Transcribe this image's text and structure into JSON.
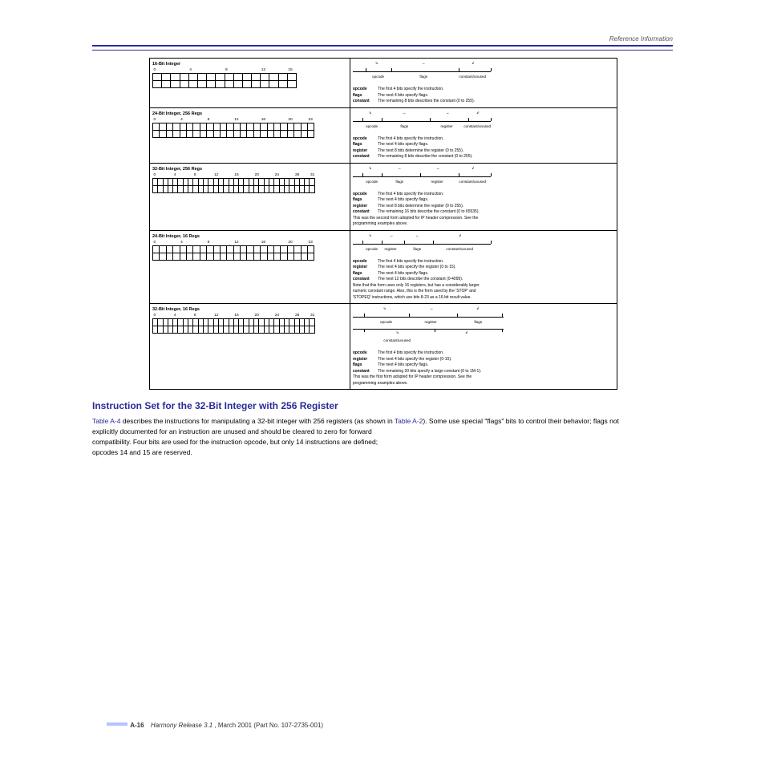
{
  "header": {
    "right_text": "Reference Information"
  },
  "footer": {
    "page_number": "A-16",
    "title_italic": "Harmony Release 3.1",
    "title_rest": "March 2001 (Part No. 107-2735-001)"
  },
  "rows": [
    {
      "left_title": "16-Bit Integer",
      "bits": 16,
      "grid_class": "",
      "labels": [
        "0",
        "4",
        "8",
        "12",
        "15"
      ],
      "field_labels": [
        "opcode",
        "flags",
        "constant/unused"
      ],
      "field_splits": [
        16,
        48,
        132,
        172
      ],
      "desc_lines": [
        [
          "opcode",
          "The first 4 bits specify the instruction."
        ],
        [
          "flags",
          "The next 4 bits specify flags."
        ],
        [
          "constant",
          "The remaining 8 bits describes the constant (0 to 255)."
        ]
      ]
    },
    {
      "left_title": "24-Bit Integer, 256 Regs",
      "bits": 24,
      "grid_class": "grid24",
      "labels": [
        "0",
        "4",
        "8",
        "12",
        "16",
        "20",
        "23"
      ],
      "field_labels": [
        "opcode",
        "flags",
        "register",
        "constant/unused"
      ],
      "field_splits": [
        12,
        36,
        96,
        144,
        172
      ],
      "desc_lines": [
        [
          "opcode",
          "The first 4 bits specify the instruction."
        ],
        [
          "flags",
          "The next 4 bits specify flags."
        ],
        [
          "register",
          "The next 8 bits determine the register (0 to 255)."
        ],
        [
          "constant",
          "The remaining 8 bits describe the constant (0 to 255)."
        ]
      ]
    },
    {
      "left_title": "32-Bit Integer, 256 Regs",
      "bits": 32,
      "grid_class": "grid32",
      "labels": [
        "0",
        "4",
        "8",
        "12",
        "16",
        "20",
        "24",
        "28",
        "31"
      ],
      "field_labels": [
        "opcode",
        "flags",
        "register",
        "constant/unused"
      ],
      "field_splits": [
        12,
        36,
        84,
        132,
        172
      ],
      "desc_lines": [
        [
          "opcode",
          "The first 4 bits specify the instruction."
        ],
        [
          "flags",
          "The next 4 bits specify flags."
        ],
        [
          "register",
          "The next 8 bits determine the register (0 to 255)."
        ],
        [
          "constant",
          "The remaining 16 bits describe the constant (0 to 65535)."
        ],
        [
          "",
          "This was the second form adopted for IP header compression.  See the",
          ""
        ],
        [
          "",
          "programming examples above.",
          ""
        ]
      ]
    },
    {
      "left_title": "24-Bit Integer, 16 Regs",
      "bits": 24,
      "grid_class": "grid24",
      "labels": [
        "0",
        "4",
        "8",
        "12",
        "16",
        "20",
        "23"
      ],
      "field_labels": [
        "opcode",
        "register",
        "flags",
        "constant/unused"
      ],
      "field_splits": [
        12,
        36,
        64,
        100,
        172
      ],
      "at_top": true,
      "desc_lines": [
        [
          "opcode",
          "The first 4 bits specify the instruction."
        ],
        [
          "register",
          "The next 4 bits specify the register (0 to 15)."
        ],
        [
          "flags",
          "The next 4 bits specify flags."
        ],
        [
          "constant",
          "The next 12 bits describe the constant (0-4095)."
        ],
        [
          "",
          "Note that this form uses only 16 registers, but has a considerably larger"
        ],
        [
          "",
          "numeric constant range. Also, this is the form used by the 'STOP' and"
        ],
        [
          "",
          "'STOPEQ' instructions, which use bits 8-23 as a 16-bit result value."
        ]
      ]
    },
    {
      "left_title": "32-Bit Integer, 16 Regs",
      "bits": 32,
      "grid_class": "grid32",
      "labels": [
        "0",
        "4",
        "8",
        "12",
        "16",
        "20",
        "24",
        "28",
        "31"
      ],
      "two_rule": true,
      "upper_labels": [
        "opcode",
        "register",
        "flags"
      ],
      "upper_splits": [
        14,
        70,
        130,
        186
      ],
      "lower_labels": [
        "constant/unused"
      ],
      "lower_splits": [
        14,
        102,
        186
      ],
      "desc_lines": [
        [
          "opcode",
          "The first 4 bits specify the instruction."
        ],
        [
          "register",
          "The next 4 bits specify the register (0-15)."
        ],
        [
          "flags",
          "The next 4 bits specify flags."
        ],
        [
          "constant",
          "The remaining 20 bits specify a large constant (0 to 1M-1)."
        ],
        [
          "",
          "This was the first form adopted for IP header compression.  See the"
        ],
        [
          "",
          "programming examples above."
        ]
      ]
    }
  ],
  "body": {
    "heading": "Instruction Set for the 32-Bit Integer with 256 Register",
    "p1a": "Table A-4",
    "p1b": " describes the instructions for manipulating a 32-bit integer with 256 registers (as shown in ",
    "p1c": "Table A-2",
    "p1d": "). Some use special \"flags\" bits to control their behavior; flags not",
    "p2": "explicitly documented for an instruction are unused and should be cleared to zero for forward",
    "p3": "compatibility.  Four bits are used for the instruction opcode, but only 14 instructions are defined;",
    "p4": "opcodes 14 and 15 are reserved."
  }
}
